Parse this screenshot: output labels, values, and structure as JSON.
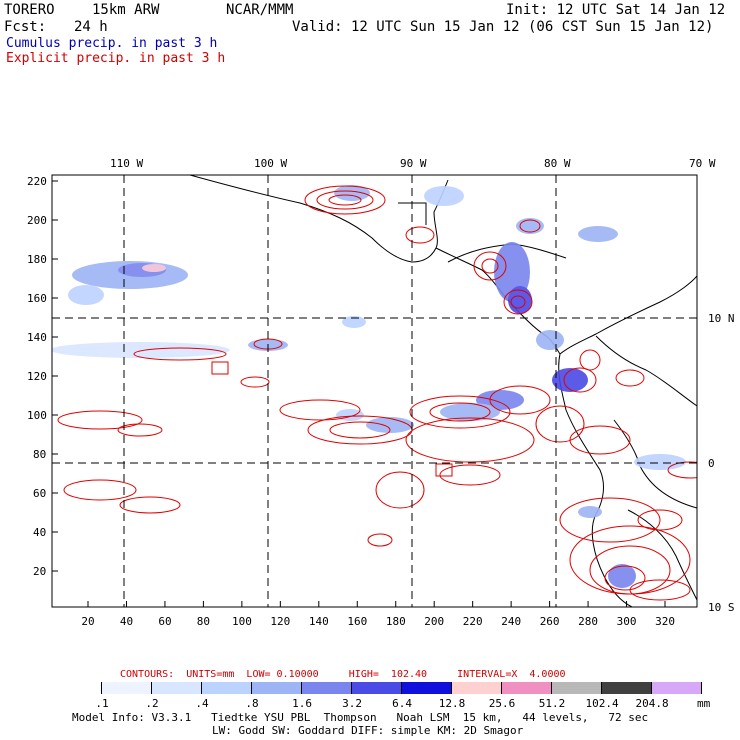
{
  "header": {
    "model": "TORERO",
    "resolution": "15km ARW",
    "org": "NCAR/MMM",
    "init": "Init: 12 UTC Sat 14 Jan 12",
    "fcst_label": "Fcst:",
    "fcst_value": "24 h",
    "valid": "Valid: 12 UTC Sun 15 Jan 12 (06 CST Sun 15 Jan 12)"
  },
  "legend": {
    "cumulus": "Cumulus precip. in past 3 h",
    "explicit": "Explicit precip. in past 3 h"
  },
  "axes": {
    "top_lon_labels": [
      "110 W",
      "100 W",
      "90 W",
      "80 W",
      "70 W"
    ],
    "right_lat_labels": [
      "10 N",
      "0",
      "10 S"
    ],
    "left_ticks": [
      "220",
      "200",
      "180",
      "160",
      "140",
      "120",
      "100",
      "80",
      "60",
      "40",
      "20"
    ],
    "bottom_ticks": [
      "20",
      "40",
      "60",
      "80",
      "100",
      "120",
      "140",
      "160",
      "180",
      "200",
      "220",
      "240",
      "260",
      "280",
      "300",
      "320"
    ]
  },
  "contours": {
    "text": "CONTOURS:  UNITS=mm  LOW= 0.10000     HIGH=  102.40     INTERVAL=X  4.0000"
  },
  "colorbar": {
    "labels": [
      ".1",
      ".2",
      ".4",
      ".8",
      "1.6",
      "3.2",
      "6.4",
      "12.8",
      "25.6",
      "51.2",
      "102.4",
      "204.8"
    ],
    "unit": "mm",
    "colors": [
      "#ffffff",
      "#eef4ff",
      "#d8e6ff",
      "#bcd2ff",
      "#9db4f5",
      "#7a86ee",
      "#4a4ae6",
      "#1010dc",
      "#ffd0d0",
      "#f090c0",
      "#b8b8b8",
      "#404040",
      "#d8a8f8"
    ]
  },
  "info": {
    "line1": "Model Info: V3.3.1   Tiedtke YSU PBL  Thompson   Noah LSM  15 km,   44 levels,   72 sec",
    "line2": "LW: Godd SW: Goddard DIFF: simple KM: 2D Smagor"
  }
}
